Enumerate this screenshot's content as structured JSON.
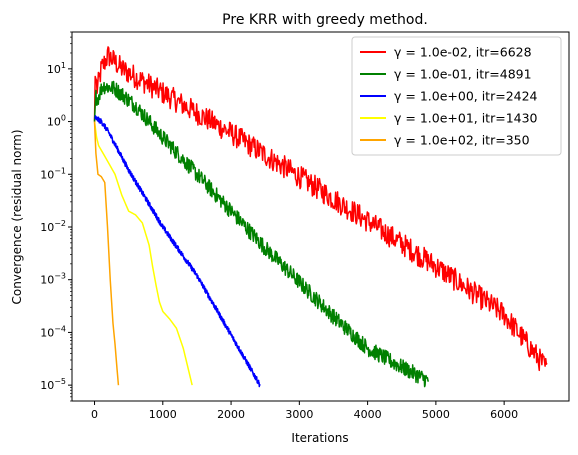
{
  "chart_data": {
    "type": "line",
    "title": "Pre KRR with greedy method.",
    "xlabel": "Iterations",
    "ylabel": "Convergence (residual norm)",
    "xscale": "linear",
    "yscale": "log",
    "xlim": [
      -330,
      6950
    ],
    "ylim": [
      5e-06,
      50
    ],
    "xticks": [
      0,
      1000,
      2000,
      3000,
      4000,
      5000,
      6000
    ],
    "xtick_labels": [
      "0",
      "1000",
      "2000",
      "3000",
      "4000",
      "5000",
      "6000"
    ],
    "yticks": [
      1e-05,
      0.0001,
      0.001,
      0.01,
      0.1,
      1,
      10
    ],
    "ytick_labels": [
      {
        "base": "10",
        "exp": "−5"
      },
      {
        "base": "10",
        "exp": "−4"
      },
      {
        "base": "10",
        "exp": "−3"
      },
      {
        "base": "10",
        "exp": "−2"
      },
      {
        "base": "10",
        "exp": "−1"
      },
      {
        "base": "10",
        "exp": "0"
      },
      {
        "base": "10",
        "exp": "1"
      }
    ],
    "grid": false,
    "legend_position": "top-right",
    "series": [
      {
        "name": "γ = 1.0e-02, itr=6628",
        "color": "#ff0000",
        "noise": 0.22,
        "points": [
          [
            0,
            1.0
          ],
          [
            10,
            8
          ],
          [
            40,
            4
          ],
          [
            100,
            10
          ],
          [
            200,
            18
          ],
          [
            400,
            10
          ],
          [
            1000,
            3.5
          ],
          [
            2000,
            0.6
          ],
          [
            3000,
            0.09
          ],
          [
            4000,
            0.013
          ],
          [
            5000,
            0.0018
          ],
          [
            6000,
            0.00022
          ],
          [
            6628,
            2e-05
          ]
        ]
      },
      {
        "name": "γ = 1.0e-01, itr=4891",
        "color": "#008000",
        "noise": 0.15,
        "points": [
          [
            0,
            1.0
          ],
          [
            15,
            3.0
          ],
          [
            50,
            2.8
          ],
          [
            120,
            4.8
          ],
          [
            300,
            4.2
          ],
          [
            600,
            2.0
          ],
          [
            1000,
            0.5
          ],
          [
            1500,
            0.1
          ],
          [
            2000,
            0.02
          ],
          [
            2500,
            0.004
          ],
          [
            3000,
            0.0009
          ],
          [
            3500,
            0.0002
          ],
          [
            4000,
            5e-05
          ],
          [
            4500,
            2.2e-05
          ],
          [
            4891,
            1.2e-05
          ]
        ]
      },
      {
        "name": "γ = 1.0e+00, itr=2424",
        "color": "#0000ff",
        "noise": 0.05,
        "points": [
          [
            0,
            1.2
          ],
          [
            100,
            1.0
          ],
          [
            200,
            0.65
          ],
          [
            500,
            0.12
          ],
          [
            1000,
            0.01
          ],
          [
            1500,
            0.0012
          ],
          [
            2000,
            9e-05
          ],
          [
            2424,
            1e-05
          ]
        ]
      },
      {
        "name": "γ = 1.0e+01, itr=1430",
        "color": "#ffff00",
        "noise": 0,
        "points": [
          [
            0,
            1.0
          ],
          [
            30,
            0.5
          ],
          [
            60,
            0.35
          ],
          [
            150,
            0.22
          ],
          [
            300,
            0.1
          ],
          [
            400,
            0.04
          ],
          [
            500,
            0.02
          ],
          [
            600,
            0.017
          ],
          [
            700,
            0.012
          ],
          [
            800,
            0.0045
          ],
          [
            850,
            0.0018
          ],
          [
            900,
            0.0008
          ],
          [
            950,
            0.00038
          ],
          [
            1000,
            0.00025
          ],
          [
            1100,
            0.00018
          ],
          [
            1200,
            0.00012
          ],
          [
            1300,
            5e-05
          ],
          [
            1430,
            1e-05
          ]
        ]
      },
      {
        "name": "γ = 1.0e+02, itr=350",
        "color": "#ffa500",
        "noise": 0,
        "points": [
          [
            0,
            1.0
          ],
          [
            20,
            0.25
          ],
          [
            50,
            0.1
          ],
          [
            100,
            0.09
          ],
          [
            150,
            0.07
          ],
          [
            190,
            0.01
          ],
          [
            230,
            0.001
          ],
          [
            270,
            0.00015
          ],
          [
            300,
            6e-05
          ],
          [
            330,
            2e-05
          ],
          [
            350,
            1e-05
          ]
        ]
      }
    ]
  }
}
